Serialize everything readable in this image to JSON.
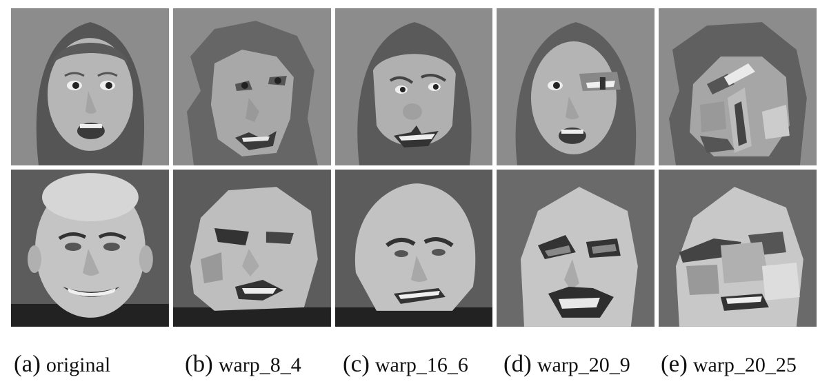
{
  "figure": {
    "columns": [
      {
        "letter": "(a)",
        "label": "original"
      },
      {
        "letter": "(b)",
        "label": "warp_8_4"
      },
      {
        "letter": "(c)",
        "label": "warp_16_6"
      },
      {
        "letter": "(d)",
        "label": "warp_20_9"
      },
      {
        "letter": "(e)",
        "label": "warp_20_25"
      }
    ],
    "rows": [
      {
        "subject": "young woman",
        "hair": "long",
        "expression": "surprised"
      },
      {
        "subject": "bald man",
        "hair": "none",
        "expression": "smiling"
      }
    ]
  },
  "colors": {
    "background": "#ffffff",
    "face_bg_row1": "#8c8c8c",
    "face_bg_row2": "#5c5c5c",
    "skin": "#b4b4b4",
    "hair": "#5a5a5a",
    "caption": "#111111"
  }
}
